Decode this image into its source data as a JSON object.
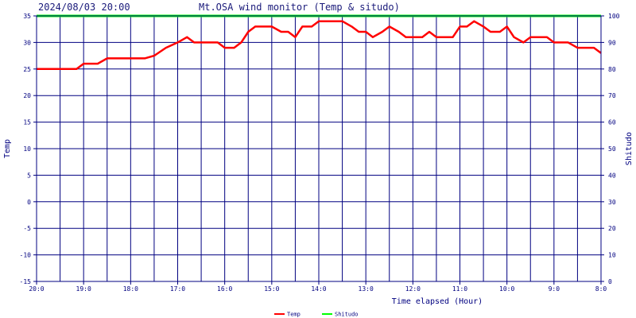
{
  "header": {
    "datetime": "2024/08/03 20:00",
    "title": "Mt.OSA wind monitor (Temp & situdo)"
  },
  "chart_data": {
    "type": "line",
    "title": "Mt.OSA wind monitor (Temp & situdo)",
    "xlabel": "Time elapsed (Hour)",
    "ylabel": "Temp",
    "y2label": "Shitudo",
    "x_tick_labels": [
      "20:0",
      "19:0",
      "18:0",
      "17:0",
      "16:0",
      "15:0",
      "14:0",
      "13:0",
      "12:0",
      "11:0",
      "10:0",
      "9:0",
      "8:0"
    ],
    "xlim": [
      0,
      12
    ],
    "ylim": [
      -15,
      35
    ],
    "y_ticks": [
      -15,
      -10,
      -5,
      0,
      5,
      10,
      15,
      20,
      25,
      30,
      35
    ],
    "y2lim": [
      0,
      100
    ],
    "y2_ticks": [
      0,
      10,
      20,
      30,
      40,
      50,
      60,
      70,
      80,
      90,
      100
    ],
    "grid": true,
    "legend_position": "bottom-center",
    "series": [
      {
        "name": "Temp",
        "color": "#ff0000",
        "axis": "left",
        "points": [
          [
            0,
            25
          ],
          [
            0.5,
            25
          ],
          [
            0.85,
            25
          ],
          [
            1.0,
            26
          ],
          [
            1.3,
            26
          ],
          [
            1.5,
            27
          ],
          [
            2.0,
            27
          ],
          [
            2.3,
            27
          ],
          [
            2.5,
            27.5
          ],
          [
            2.75,
            29
          ],
          [
            3.0,
            30
          ],
          [
            3.2,
            31
          ],
          [
            3.35,
            30
          ],
          [
            3.5,
            30
          ],
          [
            3.85,
            30
          ],
          [
            4.0,
            29
          ],
          [
            4.2,
            29
          ],
          [
            4.35,
            30
          ],
          [
            4.5,
            32
          ],
          [
            4.65,
            33
          ],
          [
            5.0,
            33
          ],
          [
            5.2,
            32
          ],
          [
            5.35,
            32
          ],
          [
            5.5,
            31
          ],
          [
            5.65,
            33
          ],
          [
            5.85,
            33
          ],
          [
            6.0,
            34
          ],
          [
            6.3,
            34
          ],
          [
            6.5,
            34
          ],
          [
            6.7,
            33
          ],
          [
            6.85,
            32
          ],
          [
            7.0,
            32
          ],
          [
            7.15,
            31
          ],
          [
            7.35,
            32
          ],
          [
            7.5,
            33
          ],
          [
            7.7,
            32
          ],
          [
            7.85,
            31
          ],
          [
            8.0,
            31
          ],
          [
            8.2,
            31
          ],
          [
            8.35,
            32
          ],
          [
            8.5,
            31
          ],
          [
            8.85,
            31
          ],
          [
            9.0,
            33
          ],
          [
            9.15,
            33
          ],
          [
            9.3,
            34
          ],
          [
            9.5,
            33
          ],
          [
            9.65,
            32
          ],
          [
            9.85,
            32
          ],
          [
            10.0,
            33
          ],
          [
            10.15,
            31
          ],
          [
            10.35,
            30
          ],
          [
            10.5,
            31
          ],
          [
            10.85,
            31
          ],
          [
            11.0,
            30
          ],
          [
            11.3,
            30
          ],
          [
            11.5,
            29
          ],
          [
            11.85,
            29
          ],
          [
            12.0,
            28
          ]
        ]
      },
      {
        "name": "Shitudo",
        "color": "#00ff00",
        "axis": "right",
        "points": [
          [
            0,
            100
          ],
          [
            12,
            100
          ]
        ]
      }
    ]
  }
}
